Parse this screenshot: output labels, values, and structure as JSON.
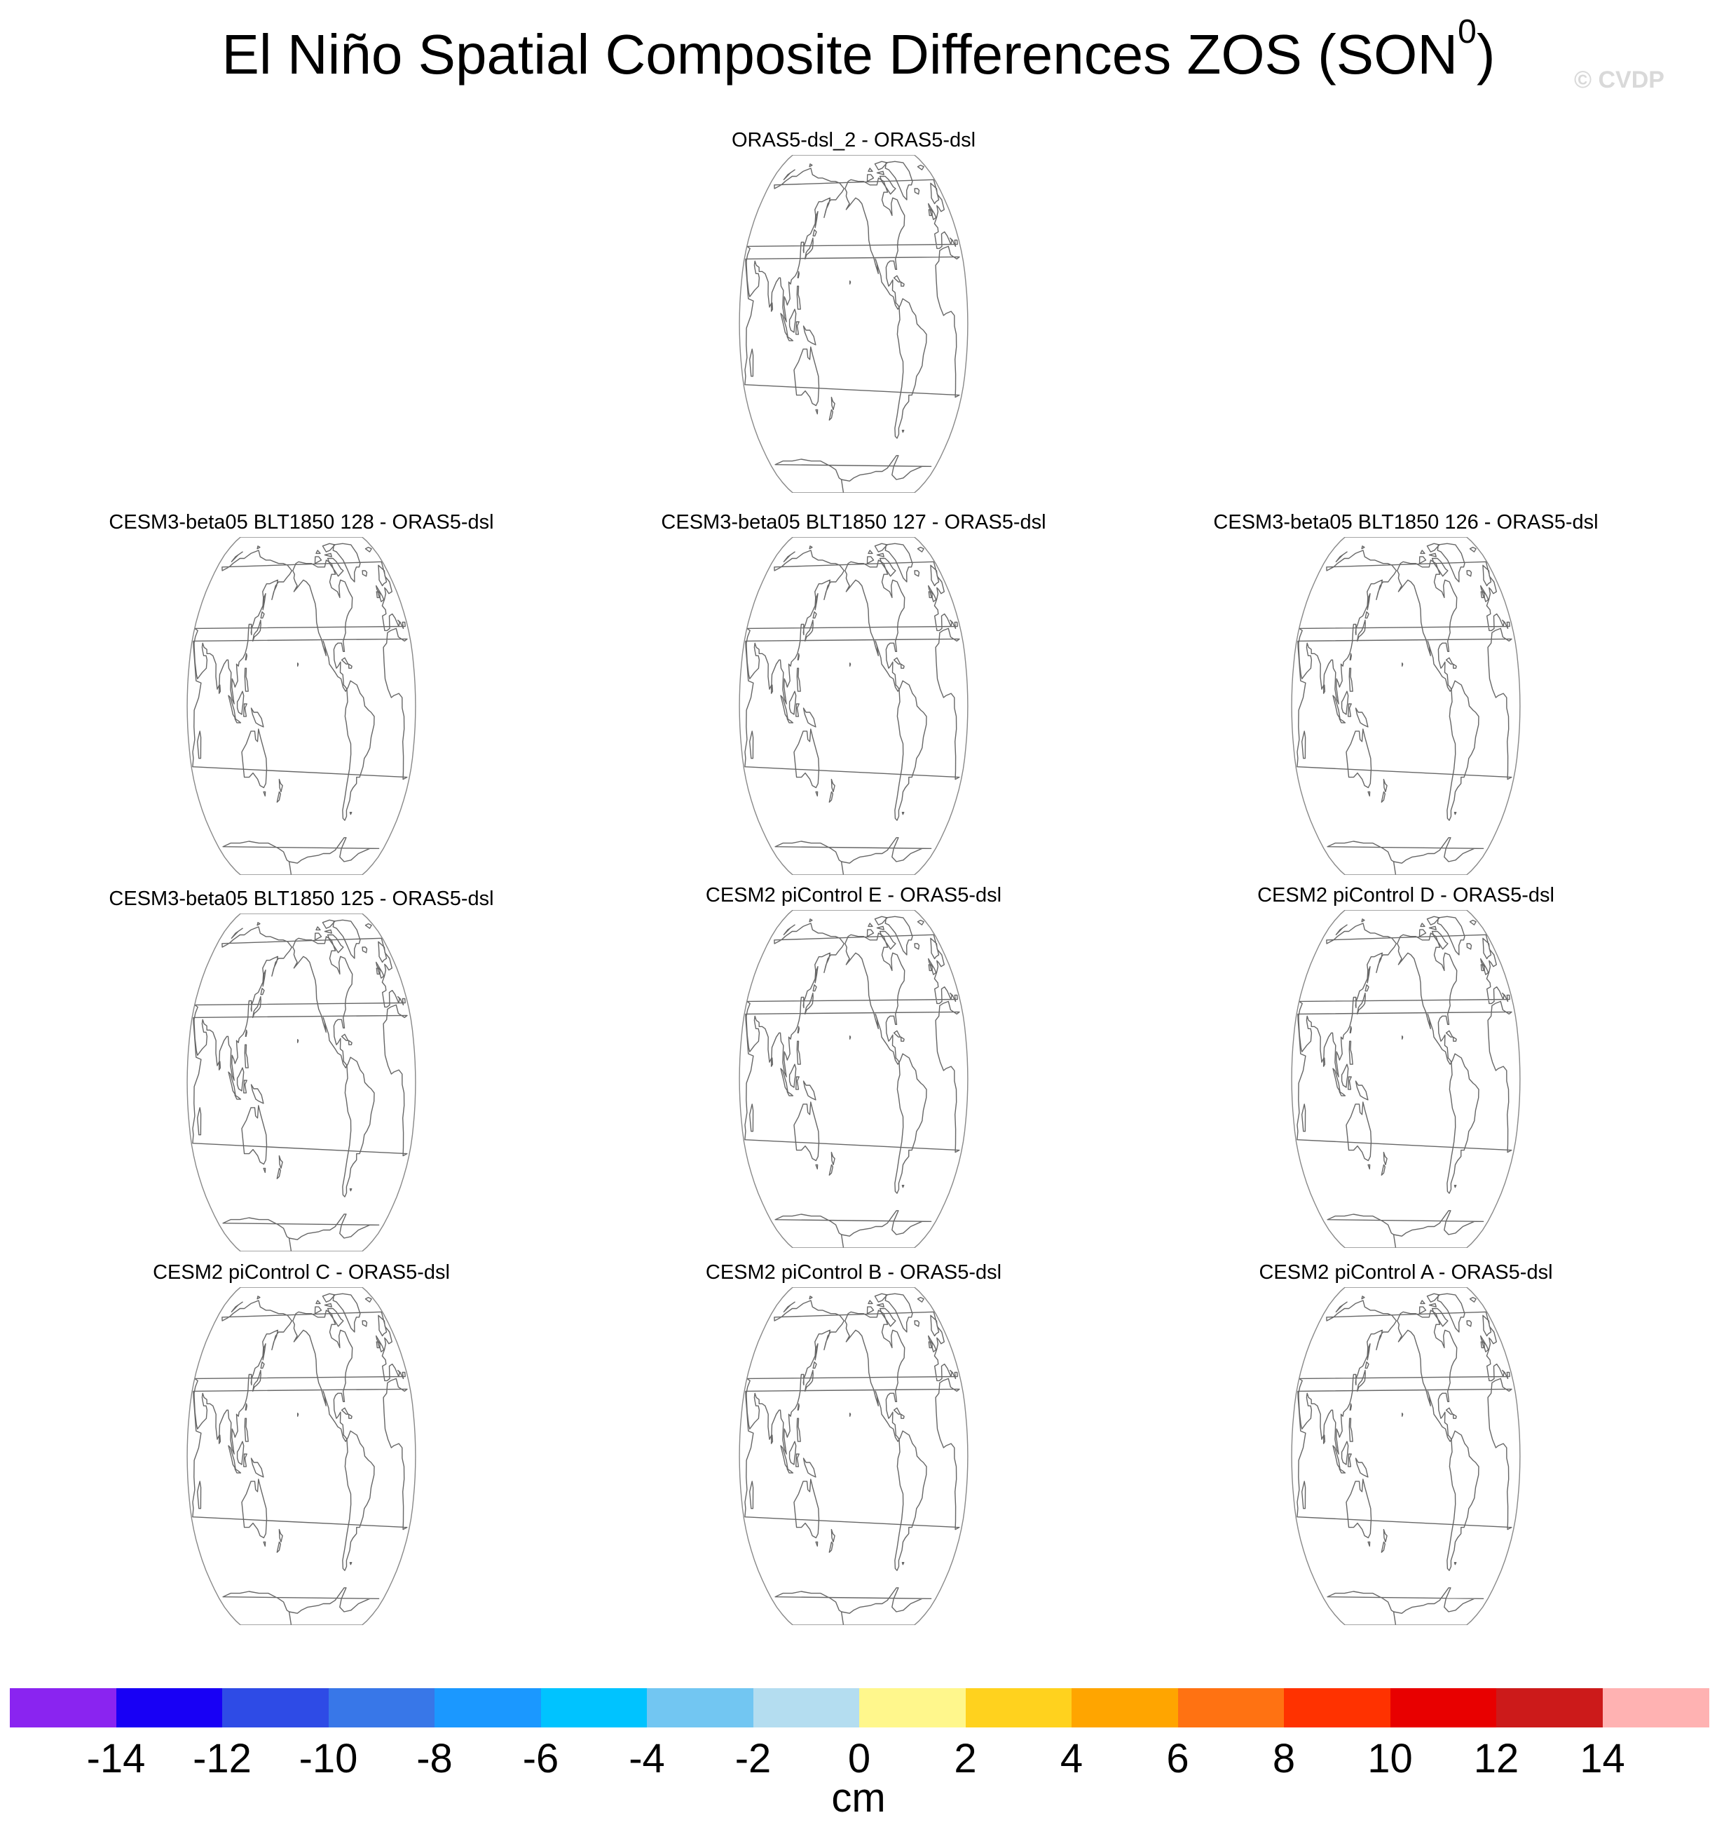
{
  "figure": {
    "title_main": "El Niño Spatial Composite Differences ZOS (SON",
    "title_sup": "0",
    "title_close": ")",
    "watermark": "© CVDP"
  },
  "panels": [
    {
      "title": "ORAS5-dsl_2 - ORAS5-dsl"
    },
    {
      "title": "CESM3-beta05 BLT1850 128 - ORAS5-dsl"
    },
    {
      "title": "CESM3-beta05 BLT1850 127 - ORAS5-dsl"
    },
    {
      "title": "CESM3-beta05 BLT1850 126 - ORAS5-dsl"
    },
    {
      "title": "CESM3-beta05 BLT1850 125 - ORAS5-dsl"
    },
    {
      "title": "CESM2 piControl E - ORAS5-dsl"
    },
    {
      "title": "CESM2 piControl D - ORAS5-dsl"
    },
    {
      "title": "CESM2 piControl C - ORAS5-dsl"
    },
    {
      "title": "CESM2 piControl B - ORAS5-dsl"
    },
    {
      "title": "CESM2 piControl A - ORAS5-dsl"
    }
  ],
  "chart_data": {
    "type": "map",
    "projection": "Robinson (Pacific-centered)",
    "variable": "ZOS",
    "season": "SON",
    "field_values": "no shading visible in any panel",
    "colorbar": {
      "units": "cm",
      "tick_labels": [
        "-14",
        "-12",
        "-10",
        "-8",
        "-6",
        "-4",
        "-2",
        "0",
        "2",
        "4",
        "6",
        "8",
        "10",
        "12",
        "14"
      ],
      "colors": [
        "#8a24f0",
        "#1800f5",
        "#2e4be6",
        "#3877e8",
        "#1b98ff",
        "#00c3ff",
        "#72c6f2",
        "#b4ddf0",
        "#fff78c",
        "#ffd21e",
        "#ffa500",
        "#ff7212",
        "#ff3200",
        "#e80000",
        "#cc1a1a",
        "#ffb2b2"
      ]
    }
  }
}
